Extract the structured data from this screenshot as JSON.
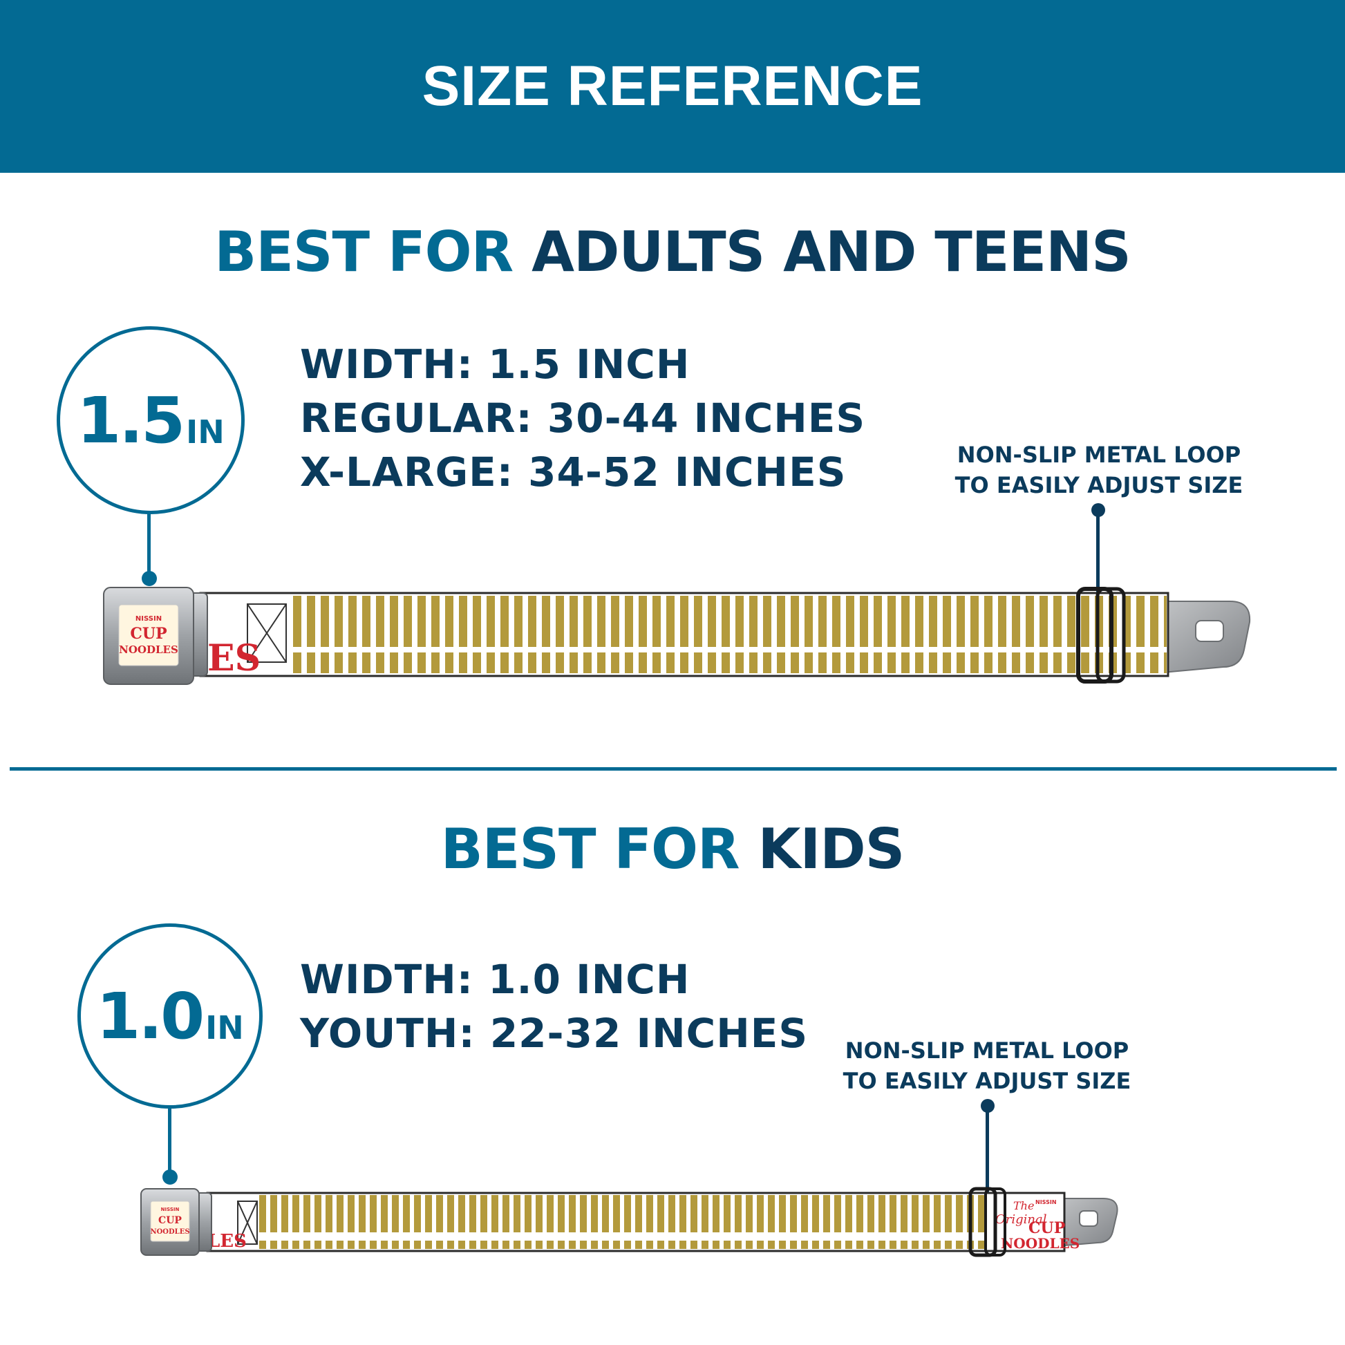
{
  "header": {
    "title": "SIZE REFERENCE"
  },
  "adult": {
    "title_accent": "BEST FOR",
    "title_rest": "ADULTS AND TEENS",
    "badge_number": "1.5",
    "badge_unit": "IN",
    "specs": [
      "WIDTH: 1.5 INCH",
      "REGULAR: 30-44 INCHES",
      "X-LARGE: 34-52 INCHES"
    ],
    "callout_line1": "NON-SLIP METAL LOOP",
    "callout_line2": "TO EASILY ADJUST SIZE",
    "buckle_brand_top": "NISSIN",
    "buckle_brand_mid": "CUP",
    "buckle_brand_bottom": "NOODLES",
    "strap_print": "ES"
  },
  "kids": {
    "title_accent": "BEST FOR",
    "title_rest": "KIDS",
    "badge_number": "1.0",
    "badge_unit": "IN",
    "specs": [
      "WIDTH: 1.0 INCH",
      "YOUTH: 22-32 INCHES"
    ],
    "callout_line1": "NON-SLIP METAL LOOP",
    "callout_line2": "TO EASILY ADJUST SIZE",
    "buckle_brand_top": "NISSIN",
    "buckle_brand_mid": "CUP",
    "buckle_brand_bottom": "NOODLES",
    "strap_print": "LES",
    "end_print_1": "The",
    "end_print_2": "Original",
    "end_print_3": "CUP",
    "end_print_4": "NOODLES",
    "end_print_5": "NISSIN"
  },
  "colors": {
    "brand_blue": "#036a93",
    "navy_text": "#0b3b5c",
    "stripe_gold": "#b39a3c",
    "noodle_red": "#d22630"
  }
}
